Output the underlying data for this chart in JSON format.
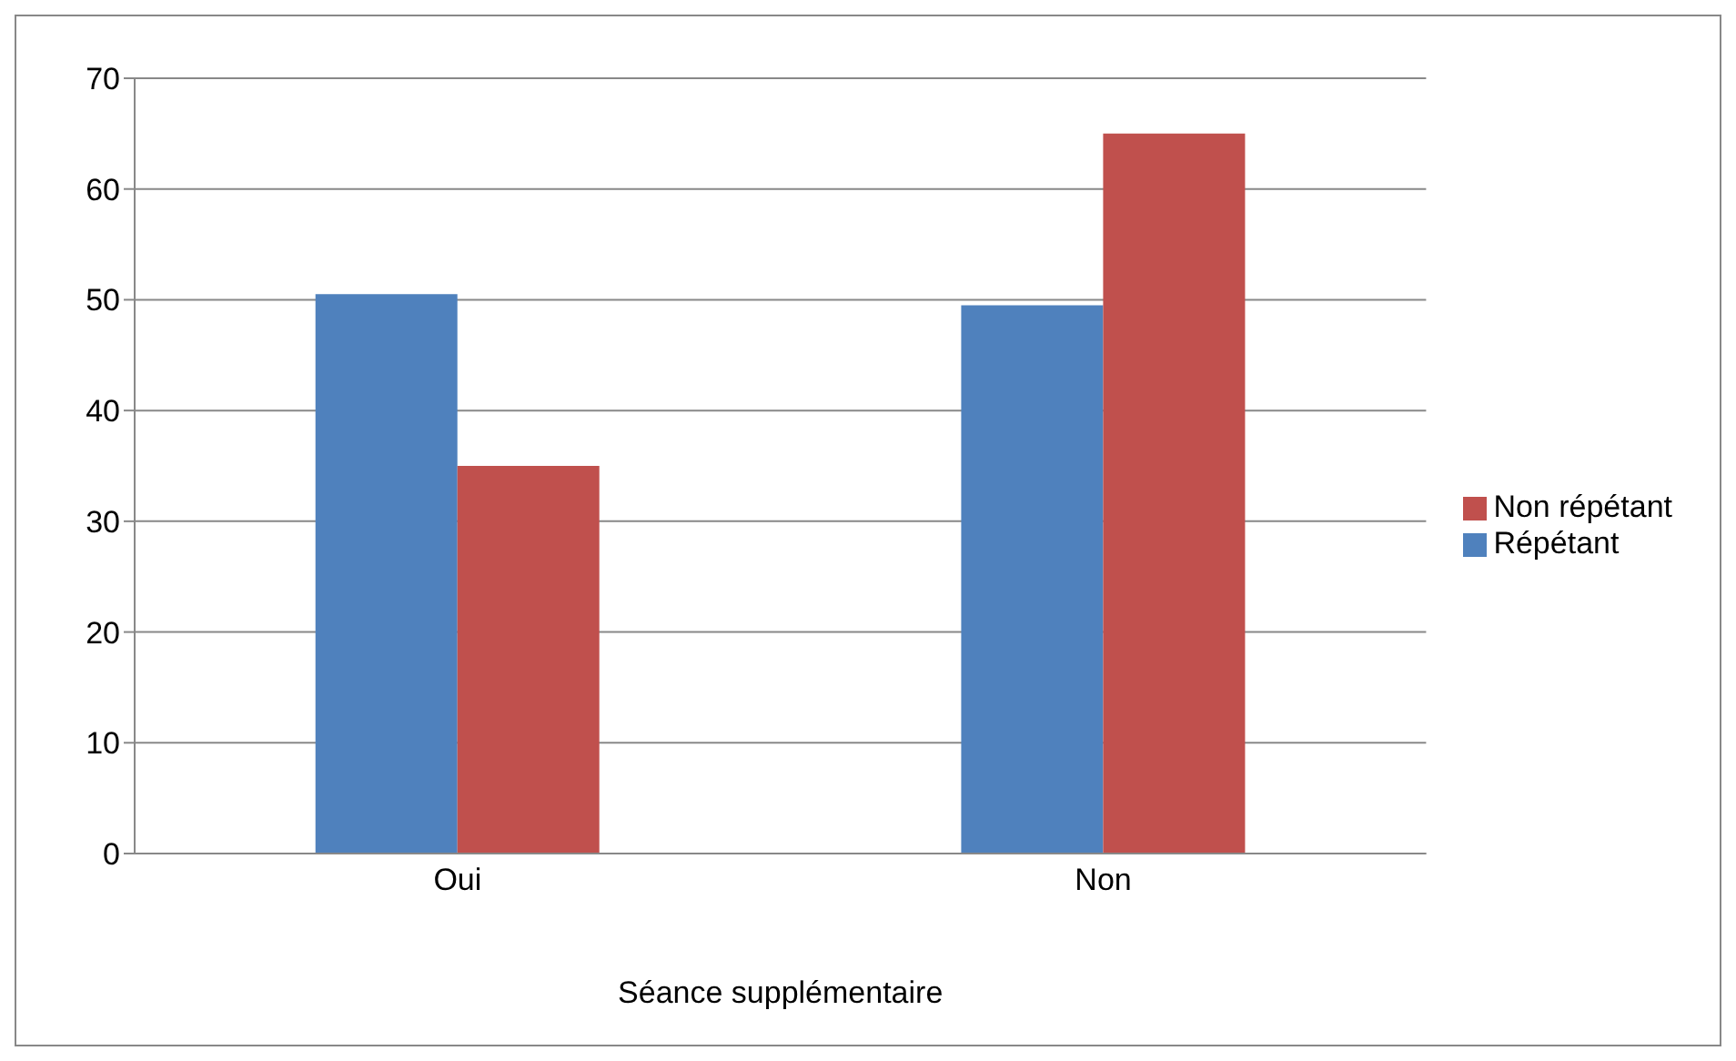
{
  "chart_data": {
    "type": "bar",
    "categories": [
      "Oui",
      "Non"
    ],
    "xlabel": "Séance supplémentaire",
    "series": [
      {
        "name": "Répétant",
        "color": "#4f81bd",
        "values": [
          50.5,
          49.5
        ]
      },
      {
        "name": "Non répétant",
        "color": "#c0504d",
        "values": [
          35,
          65
        ]
      }
    ],
    "ylim": [
      0,
      70
    ],
    "yticks": [
      0,
      10,
      20,
      30,
      40,
      50,
      60,
      70
    ],
    "grid": "y",
    "legend": "right"
  }
}
